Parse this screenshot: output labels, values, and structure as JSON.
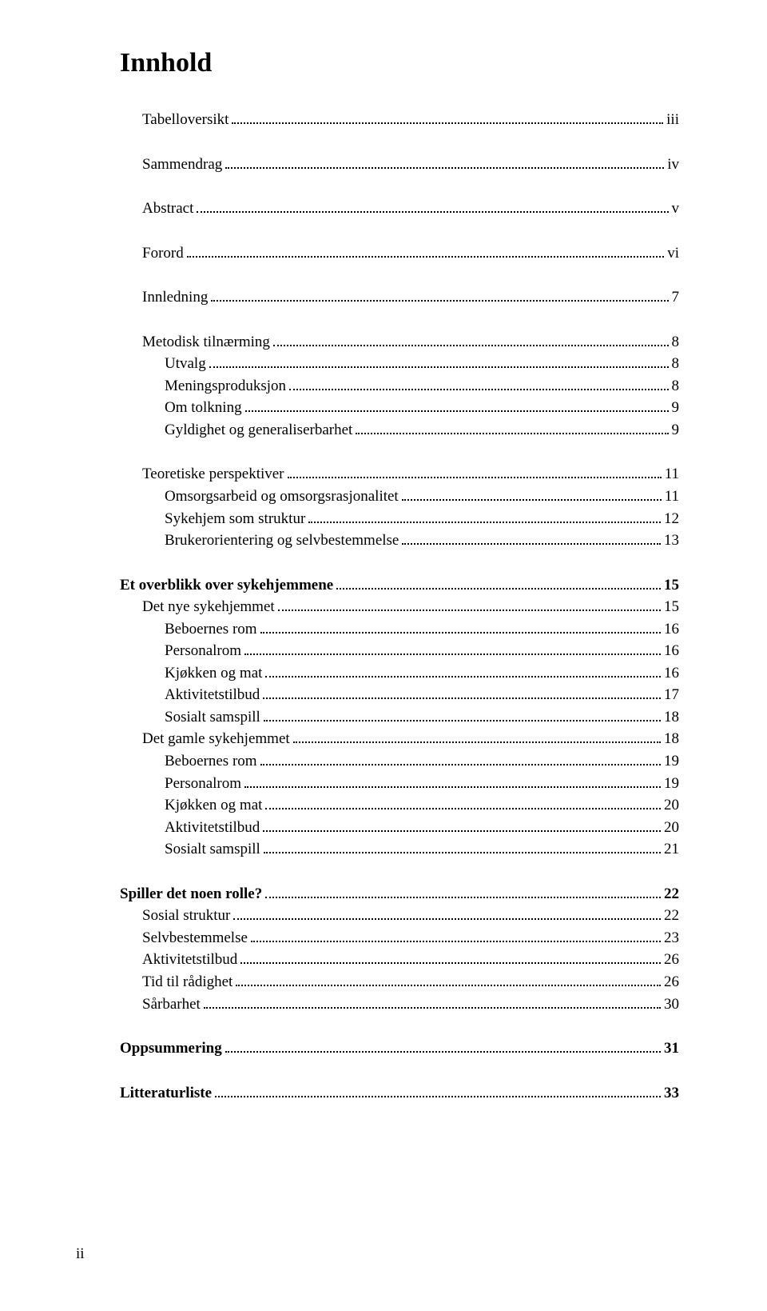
{
  "title": "Innhold",
  "footer": "ii",
  "colors": {
    "text": "#000000",
    "background": "#ffffff",
    "leader": "#000000"
  },
  "typography": {
    "title_fontsize_pt": 25,
    "body_fontsize_pt": 14,
    "font_family": "Palatino Linotype"
  },
  "entries": [
    {
      "label": "Tabelloversikt",
      "page": "iii",
      "indent": 1,
      "bold": false,
      "gap_before": false
    },
    {
      "label": "Sammendrag",
      "page": "iv",
      "indent": 1,
      "bold": false,
      "gap_before": true
    },
    {
      "label": "Abstract",
      "page": "v",
      "indent": 1,
      "bold": false,
      "gap_before": true
    },
    {
      "label": "Forord",
      "page": "vi",
      "indent": 1,
      "bold": false,
      "gap_before": true
    },
    {
      "label": "Innledning",
      "page": "7",
      "indent": 1,
      "bold": false,
      "gap_before": true
    },
    {
      "label": "Metodisk tilnærming",
      "page": "8",
      "indent": 1,
      "bold": false,
      "gap_before": true
    },
    {
      "label": "Utvalg",
      "page": "8",
      "indent": 2,
      "bold": false,
      "gap_before": false
    },
    {
      "label": "Meningsproduksjon",
      "page": "8",
      "indent": 2,
      "bold": false,
      "gap_before": false
    },
    {
      "label": "Om tolkning",
      "page": "9",
      "indent": 2,
      "bold": false,
      "gap_before": false
    },
    {
      "label": "Gyldighet og generaliserbarhet",
      "page": "9",
      "indent": 2,
      "bold": false,
      "gap_before": false
    },
    {
      "label": "Teoretiske perspektiver",
      "page": "11",
      "indent": 1,
      "bold": false,
      "gap_before": true
    },
    {
      "label": "Omsorgsarbeid og omsorgsrasjonalitet",
      "page": "11",
      "indent": 2,
      "bold": false,
      "gap_before": false
    },
    {
      "label": "Sykehjem som struktur",
      "page": "12",
      "indent": 2,
      "bold": false,
      "gap_before": false
    },
    {
      "label": "Brukerorientering og selvbestemmelse",
      "page": "13",
      "indent": 2,
      "bold": false,
      "gap_before": false
    },
    {
      "label": "Et overblikk over sykehjemmene",
      "page": "15",
      "indent": 0,
      "bold": true,
      "gap_before": true
    },
    {
      "label": "Det nye sykehjemmet",
      "page": "15",
      "indent": 1,
      "bold": false,
      "gap_before": false
    },
    {
      "label": "Beboernes rom",
      "page": "16",
      "indent": 2,
      "bold": false,
      "gap_before": false
    },
    {
      "label": "Personalrom",
      "page": "16",
      "indent": 2,
      "bold": false,
      "gap_before": false
    },
    {
      "label": "Kjøkken og mat",
      "page": "16",
      "indent": 2,
      "bold": false,
      "gap_before": false
    },
    {
      "label": "Aktivitetstilbud",
      "page": "17",
      "indent": 2,
      "bold": false,
      "gap_before": false
    },
    {
      "label": "Sosialt samspill",
      "page": "18",
      "indent": 2,
      "bold": false,
      "gap_before": false
    },
    {
      "label": "Det gamle sykehjemmet",
      "page": "18",
      "indent": 1,
      "bold": false,
      "gap_before": false
    },
    {
      "label": "Beboernes rom",
      "page": "19",
      "indent": 2,
      "bold": false,
      "gap_before": false
    },
    {
      "label": "Personalrom",
      "page": "19",
      "indent": 2,
      "bold": false,
      "gap_before": false
    },
    {
      "label": "Kjøkken og mat",
      "page": "20",
      "indent": 2,
      "bold": false,
      "gap_before": false
    },
    {
      "label": "Aktivitetstilbud",
      "page": "20",
      "indent": 2,
      "bold": false,
      "gap_before": false
    },
    {
      "label": "Sosialt samspill",
      "page": "21",
      "indent": 2,
      "bold": false,
      "gap_before": false
    },
    {
      "label": "Spiller det noen rolle?",
      "page": "22",
      "indent": 0,
      "bold": true,
      "gap_before": true
    },
    {
      "label": "Sosial struktur",
      "page": "22",
      "indent": 1,
      "bold": false,
      "gap_before": false
    },
    {
      "label": "Selvbestemmelse",
      "page": "23",
      "indent": 1,
      "bold": false,
      "gap_before": false
    },
    {
      "label": "Aktivitetstilbud",
      "page": "26",
      "indent": 1,
      "bold": false,
      "gap_before": false
    },
    {
      "label": "Tid til rådighet",
      "page": "26",
      "indent": 1,
      "bold": false,
      "gap_before": false
    },
    {
      "label": "Sårbarhet",
      "page": "30",
      "indent": 1,
      "bold": false,
      "gap_before": false
    },
    {
      "label": "Oppsummering",
      "page": "31",
      "indent": 0,
      "bold": true,
      "gap_before": true
    },
    {
      "label": "Litteraturliste",
      "page": "33",
      "indent": 0,
      "bold": true,
      "gap_before": true
    }
  ]
}
